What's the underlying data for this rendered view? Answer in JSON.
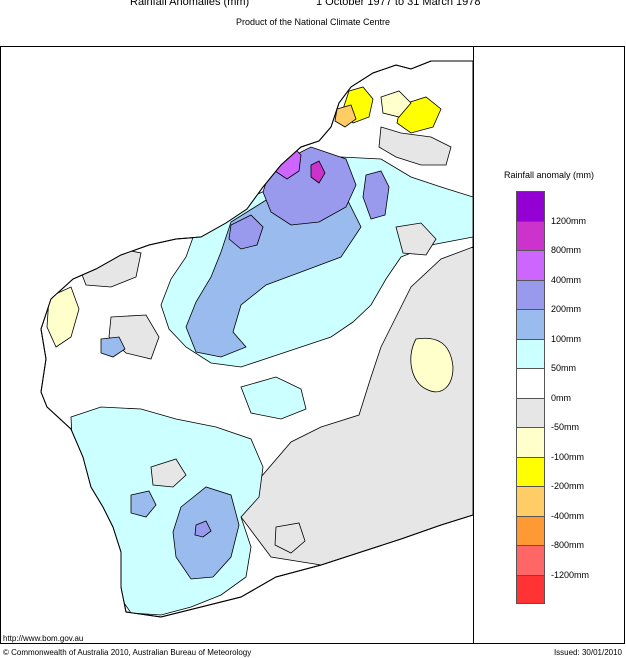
{
  "header": {
    "title": "Rainfall Anomalies (mm)",
    "period": "1 October 1977 to 31 March 1978",
    "subtitle": "Product of the National Climate Centre"
  },
  "legend": {
    "title": "Rainfall anomaly (mm)",
    "classes": [
      {
        "color": "#9400d3",
        "label": "1200mm"
      },
      {
        "color": "#cc33cc",
        "label": "800mm"
      },
      {
        "color": "#cc66ff",
        "label": "400mm"
      },
      {
        "color": "#9999ee",
        "label": "200mm"
      },
      {
        "color": "#99bbee",
        "label": "100mm"
      },
      {
        "color": "#ccffff",
        "label": "50mm"
      },
      {
        "color": "#ffffff",
        "label": "0mm"
      },
      {
        "color": "#e6e6e6",
        "label": "-50mm"
      },
      {
        "color": "#ffffcc",
        "label": "-100mm"
      },
      {
        "color": "#ffff00",
        "label": "-200mm"
      },
      {
        "color": "#ffcc66",
        "label": "-400mm"
      },
      {
        "color": "#ff9933",
        "label": "-800mm"
      },
      {
        "color": "#ff6666",
        "label": "-1200mm"
      },
      {
        "color": "#ff3333",
        "label": ""
      }
    ]
  },
  "footer": {
    "url": "http://www.bom.gov.au",
    "copyright": "© Commonwealth of Australia 2010, Australian Bureau of Meteorology",
    "issued": "Issued: 30/01/2010"
  }
}
